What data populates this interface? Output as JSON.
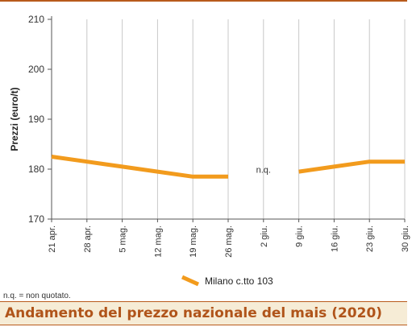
{
  "chart_data": {
    "type": "line",
    "title": "",
    "xlabel": "",
    "ylabel": "Prezzi (euro/t)",
    "ylim": [
      170,
      210
    ],
    "yticks": [
      170,
      180,
      190,
      200,
      210
    ],
    "categories": [
      "21 apr.",
      "28 apr.",
      "5 mag.",
      "12 mag.",
      "19 mag.",
      "26 mag.",
      "2 giu.",
      "9 giu.",
      "16 giu.",
      "23 giu.",
      "30 giu."
    ],
    "series": [
      {
        "name": "Milano  c.tto 103",
        "values": [
          182.5,
          181.5,
          180.5,
          179.5,
          178.5,
          178.5,
          null,
          179.5,
          180.5,
          181.5,
          181.5
        ]
      }
    ],
    "annotations": [
      {
        "category": "2 giu.",
        "text": "n.q."
      }
    ],
    "grid": {
      "horizontal": false,
      "vertical": true
    },
    "legend_position": "bottom-center",
    "line_color": "#f29b1d"
  },
  "footnote": "n.q. = non quotato.",
  "caption": "Andamento del prezzo nazionale del mais (2020)"
}
